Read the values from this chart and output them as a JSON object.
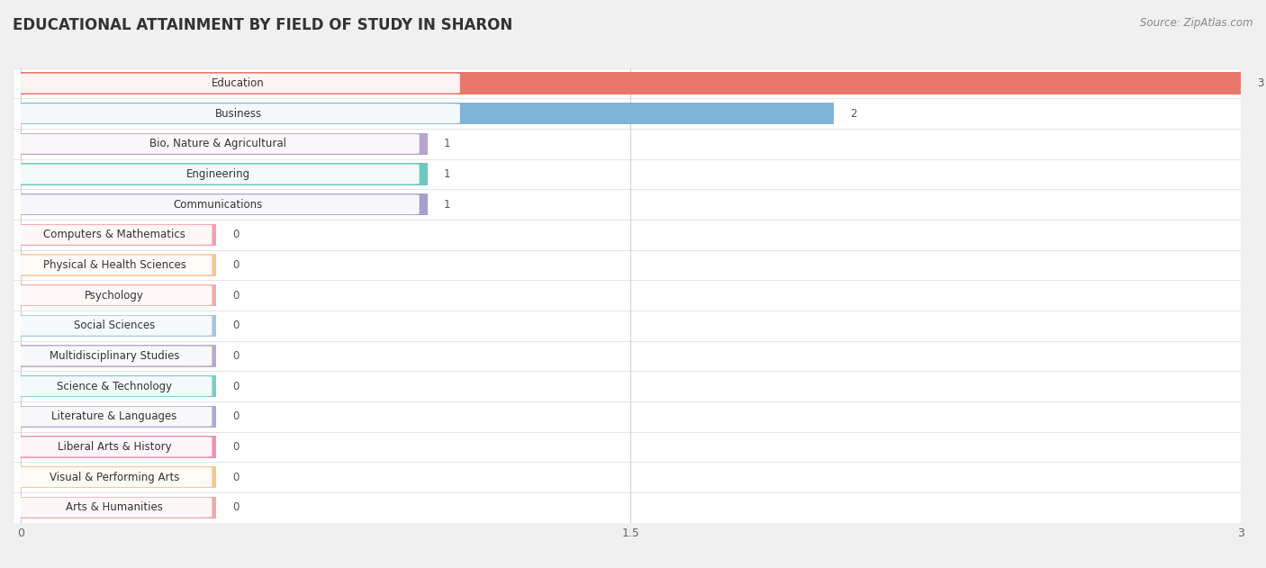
{
  "title": "EDUCATIONAL ATTAINMENT BY FIELD OF STUDY IN SHARON",
  "source": "Source: ZipAtlas.com",
  "categories": [
    "Education",
    "Business",
    "Bio, Nature & Agricultural",
    "Engineering",
    "Communications",
    "Computers & Mathematics",
    "Physical & Health Sciences",
    "Psychology",
    "Social Sciences",
    "Multidisciplinary Studies",
    "Science & Technology",
    "Literature & Languages",
    "Liberal Arts & History",
    "Visual & Performing Arts",
    "Arts & Humanities"
  ],
  "values": [
    3,
    2,
    1,
    1,
    1,
    0,
    0,
    0,
    0,
    0,
    0,
    0,
    0,
    0,
    0
  ],
  "bar_colors": [
    "#E8786A",
    "#80B3D8",
    "#B9A3CC",
    "#6DC9BC",
    "#A89ED0",
    "#F4A0B0",
    "#F5C898",
    "#F4AAAA",
    "#A8C4E4",
    "#B8AACC",
    "#7ACEC4",
    "#AAAAD8",
    "#F490B0",
    "#F5C890",
    "#F0AAAA"
  ],
  "xlim": [
    -0.02,
    3.0
  ],
  "xticks": [
    0,
    1.5,
    3
  ],
  "xtick_labels": [
    "0",
    "1.5",
    "3"
  ],
  "background_color": "#f0f0f0",
  "row_bg_color": "#ffffff",
  "row_alt_color": "#f7f7f7",
  "title_fontsize": 12,
  "label_fontsize": 9,
  "zero_bar_width": 0.5,
  "bar_height": 0.72
}
